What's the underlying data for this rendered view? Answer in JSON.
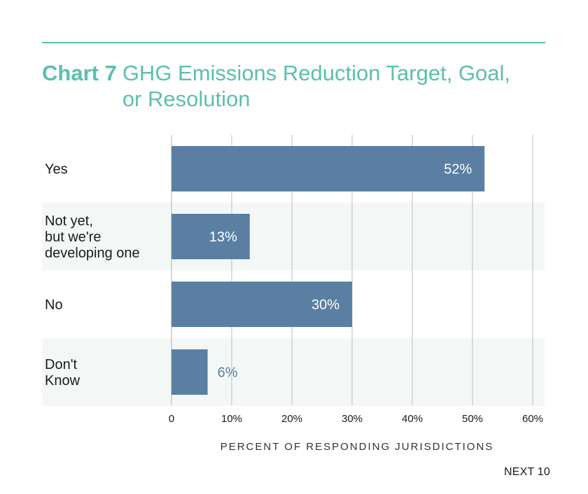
{
  "header": {
    "chart_number": "Chart 7",
    "title": "GHG Emissions Reduction Target, Goal, or Resolution"
  },
  "footer": {
    "label": "NEXT 10"
  },
  "colors": {
    "accent": "#5cbfae",
    "bar": "#5b7fa3",
    "band": "#f3f8f6",
    "grid": "#c8c8c8",
    "text": "#1a1a1a",
    "label_outside": "#5b7fa3",
    "label_inside": "#ffffff"
  },
  "chart_data": {
    "type": "bar",
    "orientation": "horizontal",
    "categories": [
      "Yes",
      "Not yet,\nbut we're\ndeveloping one",
      "No",
      "Don't\nKnow"
    ],
    "values": [
      52,
      13,
      30,
      6
    ],
    "value_labels": [
      "52%",
      "13%",
      "30%",
      "6%"
    ],
    "xlabel": "PERCENT OF RESPONDING JURISDICTIONS",
    "xlim": [
      0,
      60
    ],
    "xticks": [
      0,
      10,
      20,
      30,
      40,
      50,
      60
    ],
    "xtick_labels": [
      "0",
      "10%",
      "20%",
      "30%",
      "40%",
      "50%",
      "60%"
    ],
    "grid": "vertical",
    "legend": "none"
  }
}
